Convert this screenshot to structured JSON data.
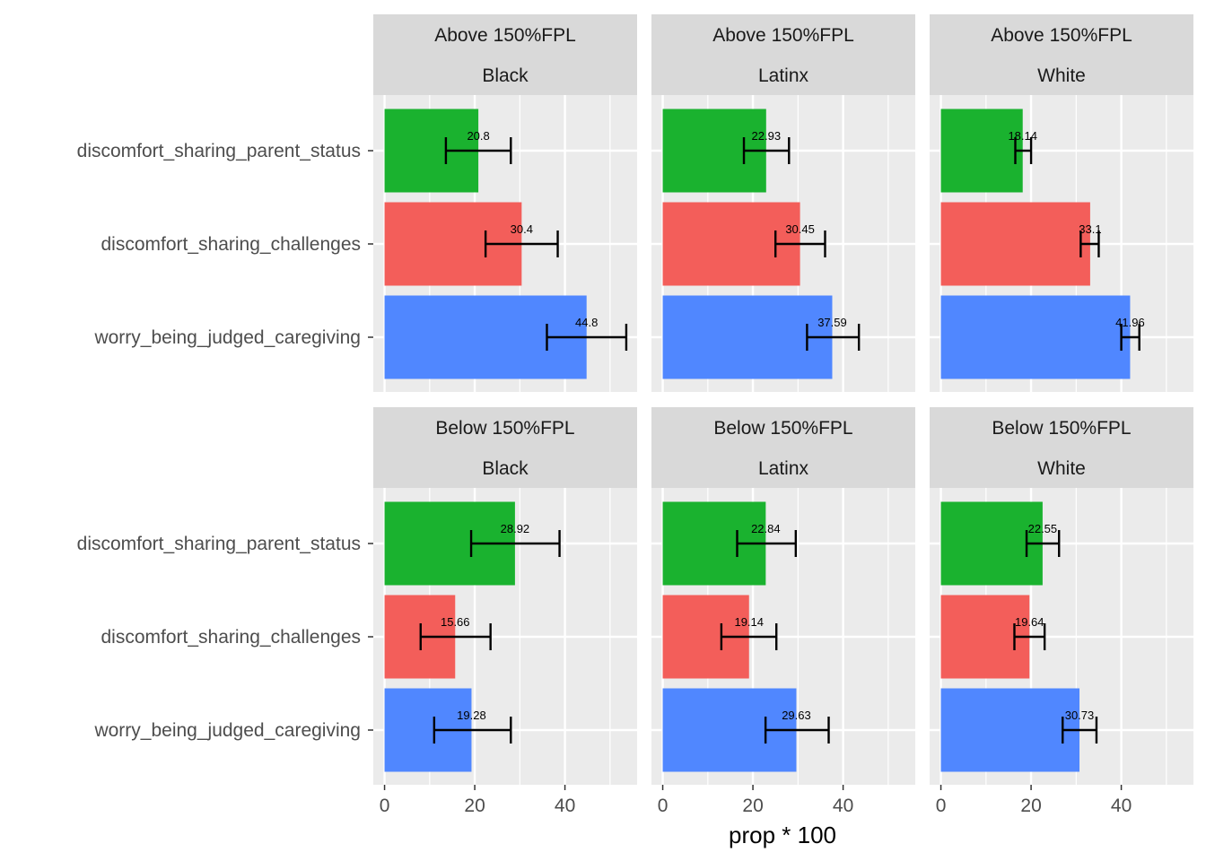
{
  "chart_data": {
    "type": "bar",
    "orientation": "horizontal",
    "xlabel": "prop * 100",
    "ylabel": "",
    "xlim": [
      -2.5,
      56
    ],
    "xticks": [
      0,
      20,
      40
    ],
    "grid": true,
    "categories": [
      "discomfort_sharing_parent_status",
      "discomfort_sharing_challenges",
      "worry_being_judged_caregiving"
    ],
    "category_colors": [
      "#1AB22F",
      "#F35E5A",
      "#5087FF"
    ],
    "panels": [
      {
        "strip_top": "Above 150%FPL",
        "strip_bottom": "Black",
        "values": [
          20.8,
          30.4,
          44.8
        ],
        "labels": [
          "20.8",
          "30.4",
          "44.8"
        ],
        "error_low": [
          13.6,
          22.4,
          36.0
        ],
        "error_high": [
          28.0,
          38.4,
          53.6
        ]
      },
      {
        "strip_top": "Above 150%FPL",
        "strip_bottom": "Latinx",
        "values": [
          22.93,
          30.45,
          37.59
        ],
        "labels": [
          "22.93",
          "30.45",
          "37.59"
        ],
        "error_low": [
          18.0,
          25.0,
          32.0
        ],
        "error_high": [
          28.0,
          36.0,
          43.5
        ]
      },
      {
        "strip_top": "Above 150%FPL",
        "strip_bottom": "White",
        "values": [
          18.14,
          33.1,
          41.96
        ],
        "labels": [
          "18.14",
          "33.1",
          "41.96"
        ],
        "error_low": [
          16.5,
          31.0,
          40.0
        ],
        "error_high": [
          20.0,
          35.0,
          44.0
        ]
      },
      {
        "strip_top": "Below 150%FPL",
        "strip_bottom": "Black",
        "values": [
          28.92,
          15.66,
          19.28
        ],
        "labels": [
          "28.92",
          "15.66",
          "19.28"
        ],
        "error_low": [
          19.2,
          8.0,
          11.0
        ],
        "error_high": [
          38.8,
          23.5,
          28.0
        ]
      },
      {
        "strip_top": "Below 150%FPL",
        "strip_bottom": "Latinx",
        "values": [
          22.84,
          19.14,
          29.63
        ],
        "labels": [
          "22.84",
          "19.14",
          "29.63"
        ],
        "error_low": [
          16.5,
          13.0,
          22.8
        ],
        "error_high": [
          29.5,
          25.2,
          36.8
        ]
      },
      {
        "strip_top": "Below 150%FPL",
        "strip_bottom": "White",
        "values": [
          22.55,
          19.64,
          30.73
        ],
        "labels": [
          "22.55",
          "19.64",
          "30.73"
        ],
        "error_low": [
          19.0,
          16.3,
          27.0
        ],
        "error_high": [
          26.2,
          23.0,
          34.5
        ]
      }
    ]
  }
}
